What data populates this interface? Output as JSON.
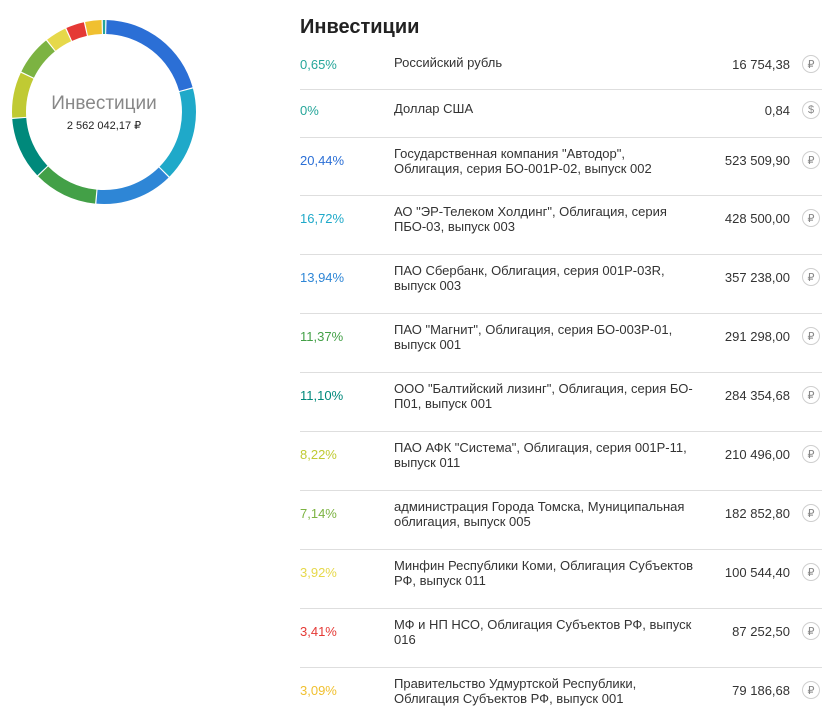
{
  "donut": {
    "title": "Инвестиции",
    "total": "2 562 042,17 ₽"
  },
  "panel": {
    "title": "Инвестиции"
  },
  "chart_data": {
    "type": "pie",
    "categories": [
      "Российский рубль",
      "Доллар США",
      "Государственная компания \"Автодор\", Облигация, серия БО-001Р-02, выпуск 002",
      "АО \"ЭР-Телеком Холдинг\", Облигация, серия ПБО-03, выпуск 003",
      "ПАО Сбербанк, Облигация, серия 001Р-03R, выпуск 003",
      "ПАО \"Магнит\", Облигация, серия БО-003Р-01, выпуск 001",
      "ООО \"Балтийский лизинг\", Облигация, серия БО-П01, выпуск 001",
      "ПАО АФК \"Система\", Облигация, серия 001Р-11, выпуск 011",
      "администрация Города Томска, Муниципальная облигация, выпуск 005",
      "Минфин Республики Коми, Облигация Субъектов РФ, выпуск 011",
      "МФ и НП НСО, Облигация Субъектов РФ, выпуск 016",
      "Правительство Удмуртской Республики, Облигация Субъектов РФ, выпуск 001"
    ],
    "values": [
      0.65,
      0,
      20.44,
      16.72,
      13.94,
      11.37,
      11.1,
      8.22,
      7.14,
      3.92,
      3.41,
      3.09
    ]
  },
  "rows": [
    {
      "pct": "0,65%",
      "name": "Российский рубль",
      "amount": "16 754,38",
      "cur": "₽",
      "color": "#26a69a"
    },
    {
      "pct": "0%",
      "name": "Доллар США",
      "amount": "0,84",
      "cur": "$",
      "color": "#26a69a"
    },
    {
      "pct": "20,44%",
      "name": "Государственная компания \"Автодор\", Облигация, серия БО-001Р-02, выпуск 002",
      "amount": "523 509,90",
      "cur": "₽",
      "color": "#2b6fd6"
    },
    {
      "pct": "16,72%",
      "name": "АО \"ЭР-Телеком Холдинг\", Облигация, серия ПБО-03, выпуск 003",
      "amount": "428 500,00",
      "cur": "₽",
      "color": "#1fa9c9"
    },
    {
      "pct": "13,94%",
      "name": "ПАО Сбербанк, Облигация, серия 001Р-03R, выпуск 003",
      "amount": "357 238,00",
      "cur": "₽",
      "color": "#2e86d6"
    },
    {
      "pct": "11,37%",
      "name": "ПАО \"Магнит\", Облигация, серия БО-003Р-01, выпуск 001",
      "amount": "291 298,00",
      "cur": "₽",
      "color": "#43a047"
    },
    {
      "pct": "11,10%",
      "name": "ООО \"Балтийский лизинг\", Облигация, серия БО-П01, выпуск 001",
      "amount": "284 354,68",
      "cur": "₽",
      "color": "#00897b"
    },
    {
      "pct": "8,22%",
      "name": "ПАО АФК \"Система\", Облигация, серия 001Р-11, выпуск 011",
      "amount": "210 496,00",
      "cur": "₽",
      "color": "#c0ca33"
    },
    {
      "pct": "7,14%",
      "name": "администрация Города Томска, Муниципальная облигация, выпуск 005",
      "amount": "182 852,80",
      "cur": "₽",
      "color": "#7cb342"
    },
    {
      "pct": "3,92%",
      "name": "Минфин Республики Коми, Облигация Субъектов РФ, выпуск 011",
      "amount": "100 544,40",
      "cur": "₽",
      "color": "#e6d84a"
    },
    {
      "pct": "3,41%",
      "name": "МФ и НП НСО, Облигация Субъектов РФ, выпуск 016",
      "amount": "87 252,50",
      "cur": "₽",
      "color": "#e53935"
    },
    {
      "pct": "3,09%",
      "name": "Правительство Удмуртской Республики, Облигация Субъектов РФ, выпуск 001",
      "amount": "79 186,68",
      "cur": "₽",
      "color": "#f0c030"
    }
  ]
}
